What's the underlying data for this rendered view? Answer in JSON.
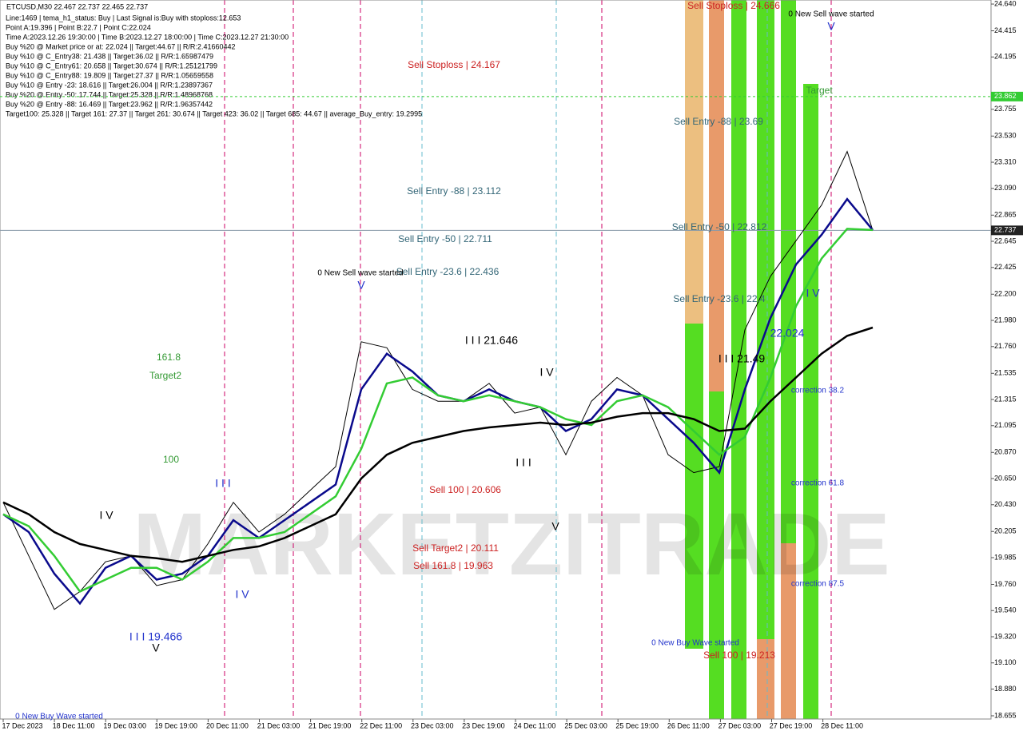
{
  "chart_data": {
    "type": "line",
    "title": "ETCUSD,M30  22.467 22.737 22.465 22.737",
    "info_lines": [
      "Line:1469 | tema_h1_status: Buy | Last Signal is:Buy with stoploss:12.653",
      "Point A:19.396 | Point B:22.7 | Point C:22.024",
      "Time A:2023.12.26 19:30:00 | Time B:2023.12.27 18:00:00 | Time C:2023.12.27 21:30:00",
      "Buy %20 @ Market price or at: 22.024 || Target:44.67 || R/R:2.41660442",
      "Buy %10 @ C_Entry38: 21.438 || Target:36.02 || R/R:1.65987479",
      "Buy %10 @ C_Entry61: 20.658 || Target:30.674 || R/R:1.25121799",
      "Buy %10 @ C_Entry88: 19.809 || Target:27.37 || R/R:1.05659558",
      "Buy %10 @ Entry -23: 18.616 || Target:26.004 || R/R:1.23897367",
      "Buy %20 @ Entry -50: 17.744 || Target:25.328 || R/R:1.48968768",
      "Buy %20 @ Entry -88: 16.469 || Target:23.962 || R/R:1.96357442",
      "Target100: 25.328 || Target 161: 27.37 || Target 261: 30.674 || Target 423: 36.02 || Target 685: 44.67 || average_Buy_entry: 19.2995"
    ],
    "xticks": [
      "17 Dec 2023",
      "18 Dec 11:00",
      "19 Dec 03:00",
      "19 Dec 19:00",
      "20 Dec 11:00",
      "21 Dec 03:00",
      "21 Dec 19:00",
      "22 Dec 11:00",
      "23 Dec 03:00",
      "23 Dec 19:00",
      "24 Dec 11:00",
      "25 Dec 03:00",
      "25 Dec 19:00",
      "26 Dec 11:00",
      "27 Dec 03:00",
      "27 Dec 19:00",
      "28 Dec 11:00"
    ],
    "ylim": [
      18.628,
      24.674
    ],
    "yticks": [
      {
        "value": 24.64,
        "label": "24.640"
      },
      {
        "value": 24.415,
        "label": "24.415"
      },
      {
        "value": 24.195,
        "label": "24.195"
      },
      {
        "value": 23.755,
        "label": "23.755"
      },
      {
        "value": 23.53,
        "label": "23.530"
      },
      {
        "value": 23.31,
        "label": "23.310"
      },
      {
        "value": 23.09,
        "label": "23.090"
      },
      {
        "value": 22.865,
        "label": "22.865"
      },
      {
        "value": 22.645,
        "label": "22.645"
      },
      {
        "value": 22.425,
        "label": "22.425"
      },
      {
        "value": 22.2,
        "label": "22.200"
      },
      {
        "value": 21.98,
        "label": "21.980"
      },
      {
        "value": 21.76,
        "label": "21.760"
      },
      {
        "value": 21.535,
        "label": "21.535"
      },
      {
        "value": 21.315,
        "label": "21.315"
      },
      {
        "value": 21.095,
        "label": "21.095"
      },
      {
        "value": 20.87,
        "label": "20.870"
      },
      {
        "value": 20.65,
        "label": "20.650"
      },
      {
        "value": 20.43,
        "label": "20.430"
      },
      {
        "value": 20.205,
        "label": "20.205"
      },
      {
        "value": 19.985,
        "label": "19.985"
      },
      {
        "value": 19.76,
        "label": "19.760"
      },
      {
        "value": 19.54,
        "label": "19.540"
      },
      {
        "value": 19.32,
        "label": "19.320"
      },
      {
        "value": 19.1,
        "label": "19.100"
      },
      {
        "value": 18.88,
        "label": "18.880"
      },
      {
        "value": 18.655,
        "label": "18.655"
      }
    ],
    "current_price": 22.737,
    "target_line": 23.862,
    "series": [
      {
        "name": "Price",
        "color": "#000000",
        "values": [
          20.45,
          20.0,
          19.55,
          19.7,
          19.95,
          20.0,
          19.75,
          19.8,
          20.1,
          20.45,
          20.2,
          20.35,
          20.55,
          20.75,
          21.8,
          21.75,
          21.4,
          21.3,
          21.3,
          21.45,
          21.2,
          21.25,
          20.85,
          21.3,
          21.5,
          21.35,
          20.85,
          20.7,
          20.75,
          21.9,
          22.35,
          22.65,
          22.95,
          23.4,
          22.737
        ]
      },
      {
        "name": "Fast MA",
        "color": "#0a0a8c",
        "values": [
          20.35,
          20.2,
          19.85,
          19.6,
          19.9,
          20.0,
          19.8,
          19.85,
          20.0,
          20.3,
          20.15,
          20.3,
          20.45,
          20.6,
          21.4,
          21.7,
          21.55,
          21.35,
          21.3,
          21.4,
          21.3,
          21.25,
          21.05,
          21.15,
          21.4,
          21.35,
          21.15,
          20.95,
          20.7,
          21.4,
          22.0,
          22.45,
          22.7,
          23.0,
          22.74
        ]
      },
      {
        "name": "Mid MA",
        "color": "#33cc33",
        "values": [
          20.35,
          20.25,
          20.0,
          19.7,
          19.8,
          19.9,
          19.9,
          19.8,
          19.95,
          20.15,
          20.15,
          20.2,
          20.35,
          20.5,
          20.9,
          21.45,
          21.5,
          21.35,
          21.3,
          21.35,
          21.3,
          21.25,
          21.15,
          21.1,
          21.3,
          21.35,
          21.25,
          21.05,
          20.85,
          21.0,
          21.5,
          22.1,
          22.5,
          22.75,
          22.74
        ]
      },
      {
        "name": "Slow MA",
        "color": "#000000",
        "values": [
          20.45,
          20.35,
          20.2,
          20.1,
          20.05,
          20.0,
          19.98,
          19.95,
          20.0,
          20.05,
          20.08,
          20.15,
          20.25,
          20.35,
          20.65,
          20.85,
          20.95,
          21.0,
          21.05,
          21.08,
          21.1,
          21.12,
          21.1,
          21.12,
          21.17,
          21.2,
          21.2,
          21.15,
          21.05,
          21.07,
          21.3,
          21.5,
          21.7,
          21.85,
          21.92
        ]
      }
    ],
    "annotations": [
      "Sell Stoploss | 24.167",
      "Sell Entry -88 | 23.112",
      "Sell Entry -50 | 22.711",
      "Sell Entry -23.6 | 22.436",
      "0 New Sell wave started",
      "I I I 21.646",
      "161.8",
      "Target2",
      "100",
      "Sell 100 | 20.606",
      "Sell Target2 | 20.111",
      "Sell 161.8 | 19.963",
      "I I I 19.466",
      "0 New Buy Wave started",
      "Sell Stoploss | 24.666",
      "0 New Sell wave started",
      "Target",
      "Sell Entry -88 | 23.69",
      "Sell Entry -50 | 22.812",
      "Sell Entry -23.6 | 22.4",
      "22.024",
      "I I I 21.49",
      "correction 38.2",
      "correction 61.8",
      "correction 87.5",
      "0 New Buy Wave started",
      "Sell 100 | 19.213",
      "V",
      "I V",
      "I I I",
      "I V",
      "V",
      "I V",
      "I I I",
      "V",
      "V",
      "I V"
    ]
  }
}
